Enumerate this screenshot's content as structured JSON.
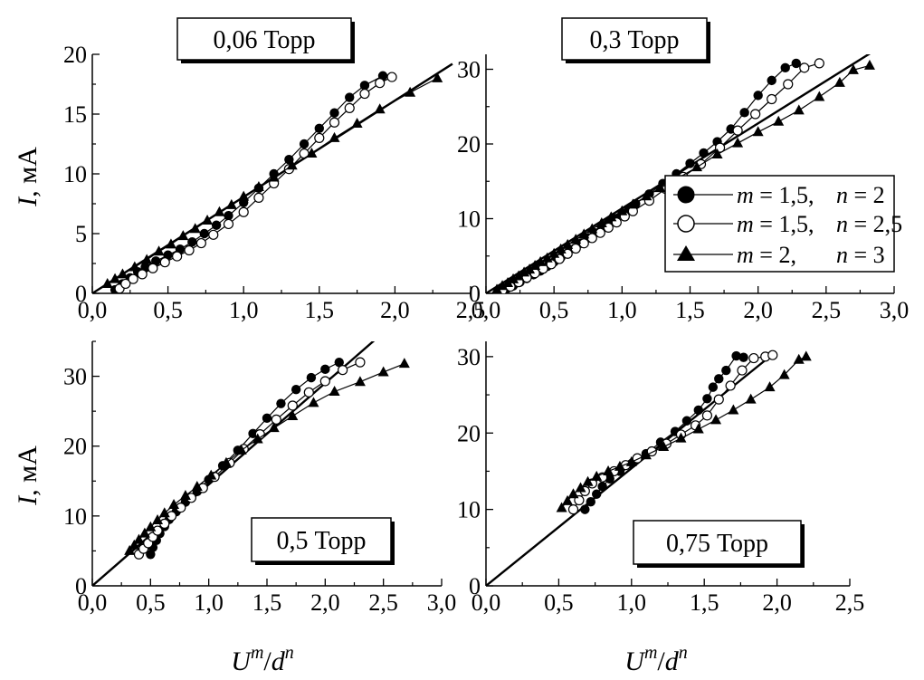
{
  "figure": {
    "ylabel_var": "I",
    "ylabel_unit": ", мА",
    "xlabel_U": "U",
    "xlabel_m": "m",
    "xlabel_slash": "/",
    "xlabel_d": "d",
    "xlabel_n": "n"
  },
  "legend": [
    {
      "marker": "filled-circle",
      "m": "m",
      "m_eq": " = 1,5,",
      "n": "n",
      "n_eq": " = 2"
    },
    {
      "marker": "open-circle",
      "m": "m",
      "m_eq": " = 1,5,",
      "n": "n",
      "n_eq": " = 2,5"
    },
    {
      "marker": "filled-triangle",
      "m": "m",
      "m_eq": " = 2,",
      "n": "n",
      "n_eq": " = 3"
    }
  ],
  "chart_data": [
    {
      "type": "line",
      "title": "0,06 Торр",
      "xlim": [
        0,
        2.5
      ],
      "ylim": [
        0,
        20
      ],
      "xticks": [
        "0,0",
        "0,5",
        "1,0",
        "1,5",
        "2,0",
        "2,5"
      ],
      "yticks": [
        "0",
        "5",
        "10",
        "15",
        "20"
      ],
      "fit_line": {
        "x": [
          0,
          2.38
        ],
        "y": [
          0,
          19.2
        ]
      },
      "series": [
        {
          "marker": "filled-circle",
          "x": [
            0.15,
            0.2,
            0.25,
            0.3,
            0.35,
            0.42,
            0.5,
            0.58,
            0.66,
            0.74,
            0.82,
            0.9,
            1.0,
            1.1,
            1.2,
            1.3,
            1.4,
            1.5,
            1.6,
            1.7,
            1.8,
            1.92
          ],
          "y": [
            0.3,
            0.8,
            1.3,
            1.8,
            2.2,
            2.7,
            3.2,
            3.7,
            4.3,
            5.0,
            5.7,
            6.5,
            7.6,
            8.8,
            10.0,
            11.2,
            12.5,
            13.8,
            15.1,
            16.4,
            17.4,
            18.2
          ]
        },
        {
          "marker": "open-circle",
          "x": [
            0.18,
            0.22,
            0.27,
            0.33,
            0.4,
            0.48,
            0.56,
            0.64,
            0.72,
            0.8,
            0.9,
            1.0,
            1.1,
            1.2,
            1.3,
            1.4,
            1.5,
            1.6,
            1.7,
            1.8,
            1.9,
            1.98
          ],
          "y": [
            0.4,
            0.8,
            1.2,
            1.6,
            2.1,
            2.6,
            3.1,
            3.6,
            4.2,
            4.9,
            5.8,
            6.8,
            8.0,
            9.2,
            10.4,
            11.7,
            13.0,
            14.3,
            15.5,
            16.7,
            17.6,
            18.1
          ]
        },
        {
          "marker": "filled-triangle",
          "x": [
            0.1,
            0.15,
            0.2,
            0.28,
            0.36,
            0.44,
            0.52,
            0.6,
            0.68,
            0.76,
            0.84,
            0.92,
            1.0,
            1.1,
            1.2,
            1.32,
            1.45,
            1.6,
            1.75,
            1.9,
            2.1,
            2.28
          ],
          "y": [
            0.8,
            1.2,
            1.6,
            2.2,
            2.8,
            3.5,
            4.1,
            4.8,
            5.4,
            6.1,
            6.8,
            7.4,
            8.1,
            8.9,
            9.7,
            10.7,
            11.7,
            13.0,
            14.2,
            15.4,
            16.8,
            18.0
          ]
        }
      ]
    },
    {
      "type": "line",
      "title": "0,3 Торр",
      "xlim": [
        0,
        3.0
      ],
      "ylim": [
        0,
        32
      ],
      "xticks": [
        "0,0",
        "0,5",
        "1,0",
        "1,5",
        "2,0",
        "2,5",
        "3,0"
      ],
      "yticks": [
        "0",
        "10",
        "20",
        "30"
      ],
      "fit_line": {
        "x": [
          0,
          2.9
        ],
        "y": [
          0,
          33.0
        ]
      },
      "series": [
        {
          "marker": "filled-circle",
          "x": [
            0.1,
            0.15,
            0.2,
            0.25,
            0.3,
            0.35,
            0.4,
            0.45,
            0.5,
            0.55,
            0.6,
            0.65,
            0.7,
            0.75,
            0.8,
            0.85,
            0.9,
            0.95,
            1.0,
            1.05,
            1.1,
            1.2,
            1.3,
            1.4,
            1.5,
            1.6,
            1.7,
            1.8,
            1.9,
            2.0,
            2.1,
            2.2,
            2.28
          ],
          "y": [
            0.2,
            0.6,
            1.0,
            1.5,
            2.0,
            2.5,
            3.0,
            3.6,
            4.2,
            4.8,
            5.4,
            6.0,
            6.7,
            7.4,
            8.1,
            8.7,
            9.4,
            10.0,
            10.6,
            11.3,
            12.0,
            13.3,
            14.7,
            16.0,
            17.4,
            18.8,
            20.3,
            22.0,
            24.2,
            26.5,
            28.5,
            30.2,
            30.8
          ]
        },
        {
          "marker": "open-circle",
          "x": [
            0.12,
            0.18,
            0.24,
            0.3,
            0.36,
            0.42,
            0.48,
            0.54,
            0.6,
            0.66,
            0.72,
            0.78,
            0.84,
            0.9,
            0.96,
            1.02,
            1.08,
            1.2,
            1.32,
            1.45,
            1.58,
            1.72,
            1.85,
            1.98,
            2.1,
            2.22,
            2.34,
            2.45
          ],
          "y": [
            0.4,
            0.9,
            1.5,
            2.1,
            2.7,
            3.3,
            3.9,
            4.6,
            5.3,
            6.0,
            6.7,
            7.4,
            8.1,
            8.8,
            9.5,
            10.3,
            11.0,
            12.4,
            14.0,
            15.6,
            17.3,
            19.5,
            21.8,
            24.0,
            26.0,
            28.0,
            30.2,
            30.8
          ]
        },
        {
          "marker": "filled-triangle",
          "x": [
            0.08,
            0.12,
            0.16,
            0.2,
            0.24,
            0.28,
            0.32,
            0.36,
            0.4,
            0.45,
            0.5,
            0.55,
            0.6,
            0.66,
            0.72,
            0.78,
            0.85,
            0.92,
            1.0,
            1.08,
            1.18,
            1.28,
            1.4,
            1.55,
            1.7,
            1.85,
            2.0,
            2.15,
            2.3,
            2.45,
            2.6,
            2.7,
            2.82
          ],
          "y": [
            0.5,
            1.0,
            1.4,
            1.9,
            2.3,
            2.8,
            3.2,
            3.7,
            4.2,
            4.7,
            5.3,
            5.9,
            6.5,
            7.2,
            7.9,
            8.6,
            9.4,
            10.2,
            11.0,
            11.9,
            13.0,
            14.1,
            15.3,
            16.9,
            18.6,
            20.1,
            21.6,
            23.0,
            24.5,
            26.3,
            28.2,
            29.9,
            30.5
          ]
        }
      ]
    },
    {
      "type": "line",
      "title": "0,5 Торр",
      "xlim": [
        0,
        3.0
      ],
      "ylim": [
        0,
        35
      ],
      "xticks": [
        "0,0",
        "0,5",
        "1,0",
        "1,5",
        "2,0",
        "2,5",
        "3,0"
      ],
      "yticks": [
        "0",
        "10",
        "20",
        "30"
      ],
      "fit_line": {
        "x": [
          0,
          2.55
        ],
        "y": [
          0,
          37.0
        ]
      },
      "series": [
        {
          "marker": "filled-circle",
          "x": [
            0.5,
            0.52,
            0.55,
            0.58,
            0.62,
            0.66,
            0.72,
            0.8,
            0.9,
            1.0,
            1.12,
            1.25,
            1.38,
            1.5,
            1.62,
            1.75,
            1.88,
            2.0,
            2.12
          ],
          "y": [
            4.5,
            5.5,
            6.5,
            7.5,
            8.5,
            9.5,
            10.6,
            12.0,
            13.5,
            15.2,
            17.2,
            19.4,
            21.8,
            24.0,
            26.1,
            28.1,
            29.8,
            31.0,
            32.0
          ]
        },
        {
          "marker": "open-circle",
          "x": [
            0.4,
            0.44,
            0.48,
            0.52,
            0.56,
            0.62,
            0.68,
            0.76,
            0.85,
            0.95,
            1.05,
            1.18,
            1.3,
            1.44,
            1.58,
            1.72,
            1.86,
            2.0,
            2.15,
            2.3
          ],
          "y": [
            4.5,
            5.3,
            6.1,
            7.0,
            7.9,
            8.9,
            10.0,
            11.2,
            12.6,
            14.0,
            15.6,
            17.6,
            19.6,
            21.7,
            23.8,
            25.8,
            27.7,
            29.3,
            30.9,
            32.0
          ]
        },
        {
          "marker": "filled-triangle",
          "x": [
            0.32,
            0.36,
            0.4,
            0.45,
            0.5,
            0.56,
            0.62,
            0.7,
            0.8,
            0.9,
            1.02,
            1.15,
            1.28,
            1.42,
            1.56,
            1.72,
            1.9,
            2.08,
            2.3,
            2.5,
            2.68
          ],
          "y": [
            5.0,
            5.8,
            6.6,
            7.5,
            8.4,
            9.4,
            10.4,
            11.6,
            12.9,
            14.2,
            15.8,
            17.6,
            19.4,
            21.0,
            22.6,
            24.3,
            26.2,
            27.8,
            29.2,
            30.6,
            31.8
          ]
        }
      ]
    },
    {
      "type": "line",
      "title": "0,75 Торр",
      "xlim": [
        0,
        2.5
      ],
      "ylim": [
        0,
        32
      ],
      "xticks": [
        "0,0",
        "0,5",
        "1,0",
        "1,5",
        "2,0",
        "2,5"
      ],
      "yticks": [
        "0",
        "10",
        "20",
        "30"
      ],
      "fit_line": {
        "x": [
          0,
          1.95
        ],
        "y": [
          0,
          30.0
        ]
      },
      "series": [
        {
          "marker": "filled-circle",
          "x": [
            0.68,
            0.72,
            0.76,
            0.8,
            0.85,
            0.92,
            1.0,
            1.1,
            1.2,
            1.3,
            1.38,
            1.46,
            1.52,
            1.56,
            1.6,
            1.65,
            1.72,
            1.77
          ],
          "y": [
            10.0,
            11.0,
            12.0,
            13.0,
            14.0,
            15.0,
            16.0,
            17.3,
            18.8,
            20.2,
            21.6,
            23.0,
            24.5,
            26.0,
            27.1,
            28.2,
            30.1,
            29.9
          ]
        },
        {
          "marker": "open-circle",
          "x": [
            0.6,
            0.64,
            0.68,
            0.73,
            0.8,
            0.88,
            0.96,
            1.04,
            1.14,
            1.24,
            1.34,
            1.44,
            1.52,
            1.6,
            1.68,
            1.76,
            1.84,
            1.92,
            1.97
          ],
          "y": [
            10.0,
            11.2,
            12.4,
            13.4,
            14.2,
            15.0,
            15.8,
            16.7,
            17.6,
            18.6,
            19.8,
            21.0,
            22.3,
            24.4,
            26.2,
            28.2,
            29.8,
            30.0,
            30.2
          ]
        },
        {
          "marker": "filled-triangle",
          "x": [
            0.52,
            0.56,
            0.6,
            0.65,
            0.7,
            0.76,
            0.84,
            0.92,
            1.0,
            1.1,
            1.22,
            1.34,
            1.46,
            1.58,
            1.7,
            1.82,
            1.95,
            2.05,
            2.15,
            2.2
          ],
          "y": [
            10.2,
            11.1,
            12.0,
            12.8,
            13.6,
            14.3,
            15.0,
            15.6,
            16.2,
            17.1,
            18.2,
            19.3,
            20.5,
            21.7,
            23.0,
            24.4,
            26.0,
            27.6,
            29.6,
            30.0
          ]
        }
      ]
    }
  ]
}
